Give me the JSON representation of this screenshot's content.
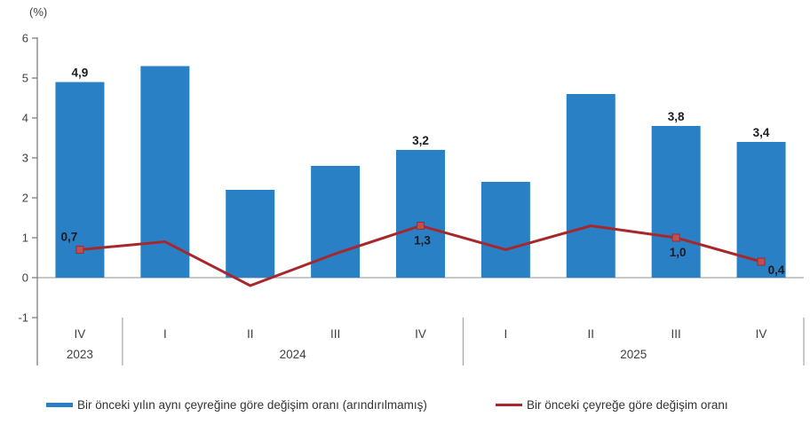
{
  "chart_data": {
    "type": "bar",
    "title": "",
    "unit_label": "(%)",
    "categories": [
      "IV",
      "I",
      "II",
      "III",
      "IV",
      "I",
      "II",
      "III",
      "IV"
    ],
    "year_groups": [
      {
        "label": "2023",
        "span": 1
      },
      {
        "label": "2024",
        "span": 4
      },
      {
        "label": "2025",
        "span": 4
      }
    ],
    "yticks": [
      6,
      5,
      4,
      3,
      2,
      1,
      0,
      -1
    ],
    "ylim": [
      -1,
      6
    ],
    "grid": false,
    "legend_position": "bottom",
    "series": [
      {
        "name": "Bir önceki yılın aynı çeyreğine göre değişim oranı (arındırılmamış)",
        "type": "bar",
        "values": [
          4.9,
          5.3,
          2.2,
          2.8,
          3.2,
          2.4,
          4.6,
          3.8,
          3.4
        ],
        "labels": [
          "4,9",
          null,
          null,
          null,
          "3,2",
          null,
          null,
          "3,8",
          "3,4"
        ]
      },
      {
        "name": "Bir önceki çeyreğe göre değişim oranı",
        "type": "line",
        "values": [
          0.7,
          0.9,
          -0.2,
          0.6,
          1.3,
          0.7,
          1.3,
          1.0,
          0.4
        ],
        "labels": [
          "0,7",
          null,
          null,
          null,
          "1,3",
          null,
          null,
          "1,0",
          "0,4"
        ],
        "label_pos": [
          "above-left",
          null,
          null,
          null,
          "below",
          null,
          null,
          "below",
          "below-right"
        ]
      }
    ]
  },
  "colors": {
    "bar": "#2980C4",
    "line": "#A6282D",
    "marker": "#C0504D",
    "axis": "#808080",
    "zero_line": "#A6A6A6",
    "separator": "#A6A6A6",
    "data_label": "#1A1A24",
    "axis_text": "#404040"
  }
}
